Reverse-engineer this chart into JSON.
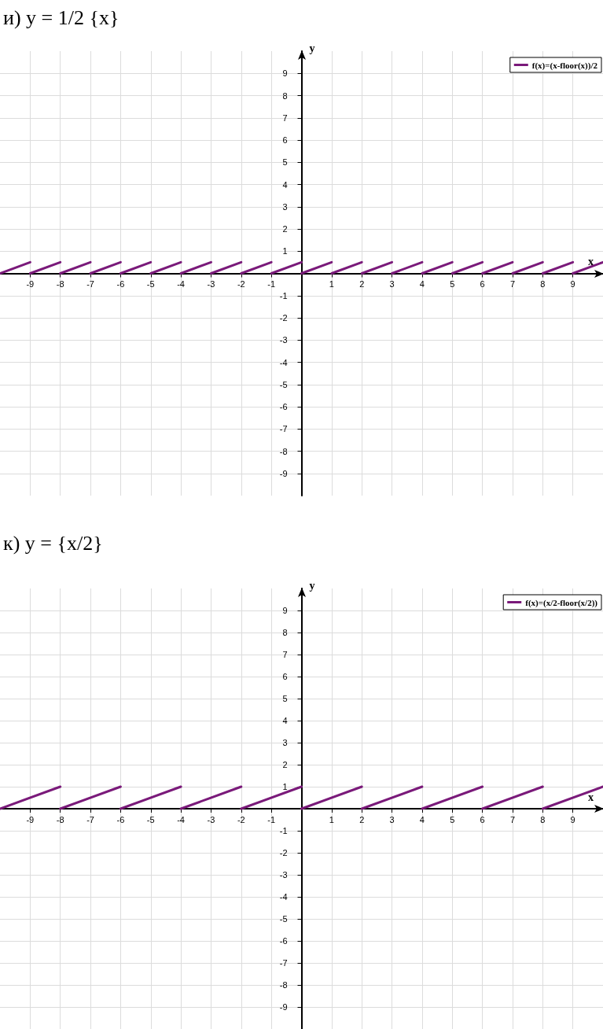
{
  "chart_data": [
    {
      "type": "line",
      "title": "и) y = 1/2 {x}",
      "xlabel": "x",
      "ylabel": "y",
      "xlim": [
        -10,
        10
      ],
      "ylim": [
        -10,
        10
      ],
      "xticks": [
        -9,
        -8,
        -7,
        -6,
        -5,
        -4,
        -3,
        -2,
        -1,
        {
          "value": 0,
          "label": null
        },
        1,
        2,
        3,
        4,
        5,
        6,
        7,
        8,
        9
      ],
      "yticks": [
        -9,
        -8,
        -7,
        -6,
        -5,
        -4,
        -3,
        -2,
        -1,
        {
          "value": 0,
          "label": null
        },
        1,
        2,
        3,
        4,
        5,
        6,
        7,
        8,
        9
      ],
      "grid": true,
      "legend": "top right",
      "marker": "none",
      "line_style": "solid",
      "series": [
        {
          "name": "f(x)=(x-floor(x))/2",
          "color": "#7a1a7a",
          "x": [
            -10,
            -9
          ],
          "values": [
            0,
            0.5
          ]
        },
        {
          "color": "#7a1a7a",
          "x": [
            -9,
            -8
          ],
          "values": [
            0,
            0.5
          ]
        },
        {
          "color": "#7a1a7a",
          "x": [
            -8,
            -7
          ],
          "values": [
            0,
            0.5
          ]
        },
        {
          "color": "#7a1a7a",
          "x": [
            -7,
            -6
          ],
          "values": [
            0,
            0.5
          ]
        },
        {
          "color": "#7a1a7a",
          "x": [
            -6,
            -5
          ],
          "values": [
            0,
            0.5
          ]
        },
        {
          "color": "#7a1a7a",
          "x": [
            -5,
            -4
          ],
          "values": [
            0,
            0.5
          ]
        },
        {
          "color": "#7a1a7a",
          "x": [
            -4,
            -3
          ],
          "values": [
            0,
            0.5
          ]
        },
        {
          "color": "#7a1a7a",
          "x": [
            -3,
            -2
          ],
          "values": [
            0,
            0.5
          ]
        },
        {
          "color": "#7a1a7a",
          "x": [
            -2,
            -1
          ],
          "values": [
            0,
            0.5
          ]
        },
        {
          "color": "#7a1a7a",
          "x": [
            -1,
            0
          ],
          "values": [
            0,
            0.5
          ]
        },
        {
          "color": "#7a1a7a",
          "x": [
            0,
            1
          ],
          "values": [
            0,
            0.5
          ]
        },
        {
          "color": "#7a1a7a",
          "x": [
            1,
            2
          ],
          "values": [
            0,
            0.5
          ]
        },
        {
          "color": "#7a1a7a",
          "x": [
            2,
            3
          ],
          "values": [
            0,
            0.5
          ]
        },
        {
          "color": "#7a1a7a",
          "x": [
            3,
            4
          ],
          "values": [
            0,
            0.5
          ]
        },
        {
          "color": "#7a1a7a",
          "x": [
            4,
            5
          ],
          "values": [
            0,
            0.5
          ]
        },
        {
          "color": "#7a1a7a",
          "x": [
            5,
            6
          ],
          "values": [
            0,
            0.5
          ]
        },
        {
          "color": "#7a1a7a",
          "x": [
            6,
            7
          ],
          "values": [
            0,
            0.5
          ]
        },
        {
          "color": "#7a1a7a",
          "x": [
            7,
            8
          ],
          "values": [
            0,
            0.5
          ]
        },
        {
          "color": "#7a1a7a",
          "x": [
            8,
            9
          ],
          "values": [
            0,
            0.5
          ]
        },
        {
          "color": "#7a1a7a",
          "x": [
            9,
            10
          ],
          "values": [
            0,
            0.5
          ]
        }
      ]
    },
    {
      "type": "line",
      "title": "к) y = {x/2}",
      "xlabel": "x",
      "ylabel": "y",
      "xlim": [
        -10,
        10
      ],
      "ylim": [
        -10,
        10
      ],
      "xticks": [
        -9,
        -8,
        -7,
        -6,
        -5,
        -4,
        -3,
        -2,
        -1,
        {
          "value": 0,
          "label": null
        },
        1,
        2,
        3,
        4,
        5,
        6,
        7,
        8,
        9
      ],
      "yticks": [
        -9,
        -8,
        -7,
        -6,
        -5,
        -4,
        -3,
        -2,
        -1,
        {
          "value": 0,
          "label": null
        },
        1,
        2,
        3,
        4,
        5,
        6,
        7,
        8,
        9
      ],
      "grid": true,
      "legend": "top right",
      "marker": "none",
      "line_style": "solid",
      "series": [
        {
          "name": "f(x)=(x/2-floor(x/2))",
          "color": "#7a1a7a",
          "x": [
            -10,
            -8
          ],
          "values": [
            0,
            1
          ]
        },
        {
          "color": "#7a1a7a",
          "x": [
            -8,
            -6
          ],
          "values": [
            0,
            1
          ]
        },
        {
          "color": "#7a1a7a",
          "x": [
            -6,
            -4
          ],
          "values": [
            0,
            1
          ]
        },
        {
          "color": "#7a1a7a",
          "x": [
            -4,
            -2
          ],
          "values": [
            0,
            1
          ]
        },
        {
          "color": "#7a1a7a",
          "x": [
            -2,
            0
          ],
          "values": [
            0,
            1
          ]
        },
        {
          "color": "#7a1a7a",
          "x": [
            0,
            2
          ],
          "values": [
            0,
            1
          ]
        },
        {
          "color": "#7a1a7a",
          "x": [
            2,
            4
          ],
          "values": [
            0,
            1
          ]
        },
        {
          "color": "#7a1a7a",
          "x": [
            4,
            6
          ],
          "values": [
            0,
            1
          ]
        },
        {
          "color": "#7a1a7a",
          "x": [
            6,
            8
          ],
          "values": [
            0,
            1
          ]
        },
        {
          "color": "#7a1a7a",
          "x": [
            8,
            10
          ],
          "values": [
            0,
            1
          ]
        }
      ]
    }
  ]
}
